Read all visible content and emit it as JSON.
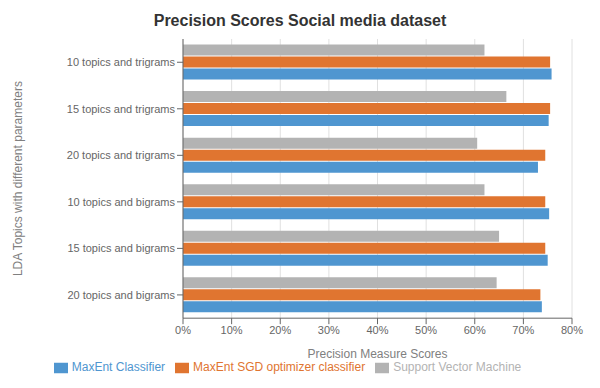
{
  "chart_data": {
    "type": "bar",
    "orientation": "horizontal",
    "title": "Precision Scores Social media dataset",
    "xlabel": "Precision Measure Scores",
    "ylabel": "LDA Topics with different parameters",
    "categories": [
      "20 topics and bigrams",
      "15 topics and bigrams",
      "10 topics and bigrams",
      "20 topics and trigrams",
      "15 topics and trigrams",
      "10 topics and trigrams"
    ],
    "series": [
      {
        "name": "Support Vector Machine",
        "color": "#b3b3b3",
        "values": [
          0.645,
          0.65,
          0.62,
          0.605,
          0.665,
          0.62
        ]
      },
      {
        "name": "MaxEnt SGD optimizer classifier",
        "color": "#e07530",
        "values": [
          0.735,
          0.745,
          0.745,
          0.745,
          0.755,
          0.755
        ]
      },
      {
        "name": "MaxEnt Classifier",
        "color": "#4f96d0",
        "values": [
          0.738,
          0.75,
          0.753,
          0.73,
          0.752,
          0.758
        ]
      }
    ],
    "xlim": [
      0,
      0.8
    ],
    "xticks": [
      {
        "value": 0,
        "label": "0%"
      },
      {
        "value": 0.1,
        "label": "10%"
      },
      {
        "value": 0.2,
        "label": "20%"
      },
      {
        "value": 0.3,
        "label": "30%"
      },
      {
        "value": 0.4,
        "label": "40%"
      },
      {
        "value": 0.5,
        "label": "50%"
      },
      {
        "value": 0.6,
        "label": "60%"
      },
      {
        "value": 0.7,
        "label": "70%"
      },
      {
        "value": 0.8,
        "label": "80%"
      }
    ],
    "grid": true,
    "legend": "bottom"
  }
}
